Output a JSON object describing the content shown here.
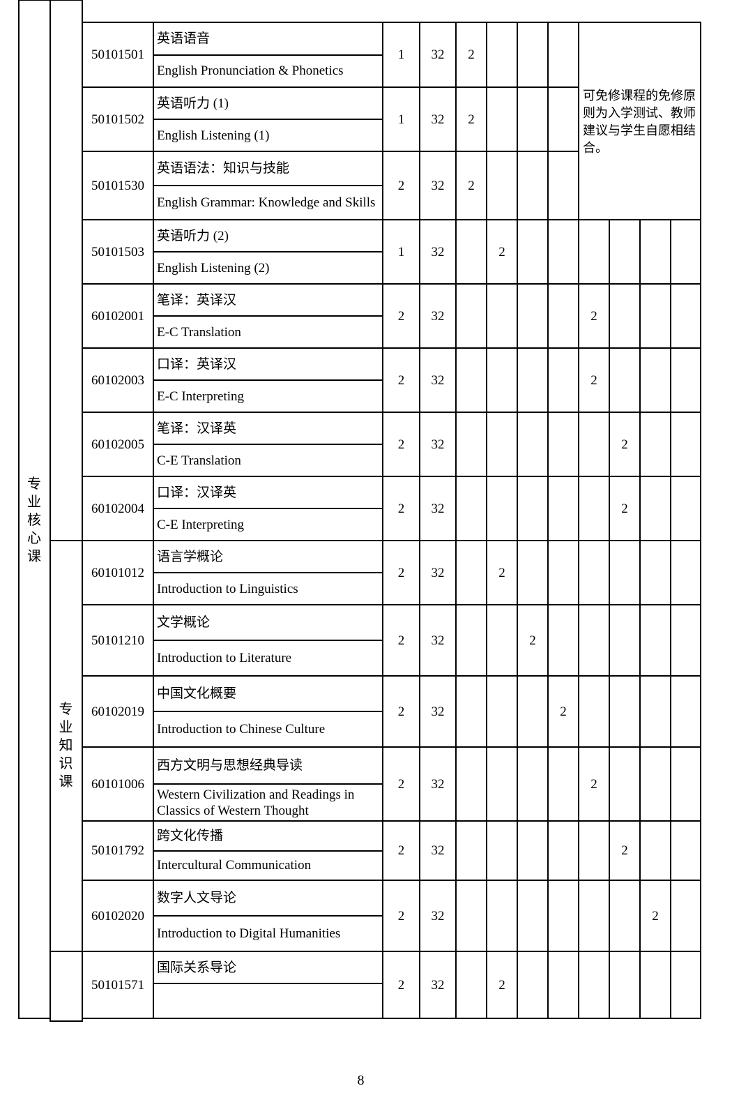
{
  "categories": {
    "outer": "专业核心课",
    "knowledge": "专业知识课"
  },
  "note": "可免修课程的免修原则为入学测试、教师建议与学生自愿相结合。",
  "courses": [
    {
      "code": "50101501",
      "zh": "英语语音",
      "en": "English Pronunciation & Phonetics",
      "credits": "1",
      "hours": "32",
      "semester_col": 0,
      "value": "2"
    },
    {
      "code": "50101502",
      "zh": "英语听力 (1)",
      "en": "English Listening (1)",
      "credits": "1",
      "hours": "32",
      "semester_col": 0,
      "value": "2"
    },
    {
      "code": "50101530",
      "zh": "英语语法：知识与技能",
      "en": "English Grammar: Knowledge and Skills",
      "credits": "2",
      "hours": "32",
      "semester_col": 0,
      "value": "2"
    },
    {
      "code": "50101503",
      "zh": "英语听力 (2)",
      "en": "English Listening (2)",
      "credits": "1",
      "hours": "32",
      "semester_col": 1,
      "value": "2"
    },
    {
      "code": "60102001",
      "zh": "笔译：英译汉",
      "en": "E-C Translation",
      "credits": "2",
      "hours": "32",
      "semester_col": 4,
      "value": "2"
    },
    {
      "code": "60102003",
      "zh": "口译：英译汉",
      "en": "E-C Interpreting",
      "credits": "2",
      "hours": "32",
      "semester_col": 4,
      "value": "2"
    },
    {
      "code": "60102005",
      "zh": "笔译：汉译英",
      "en": "C-E Translation",
      "credits": "2",
      "hours": "32",
      "semester_col": 5,
      "value": "2"
    },
    {
      "code": "60102004",
      "zh": "口译：汉译英",
      "en": "C-E Interpreting",
      "credits": "2",
      "hours": "32",
      "semester_col": 5,
      "value": "2"
    },
    {
      "code": "60101012",
      "zh": "语言学概论",
      "en": "Introduction to Linguistics",
      "credits": "2",
      "hours": "32",
      "semester_col": 1,
      "value": "2"
    },
    {
      "code": "50101210",
      "zh": "文学概论",
      "en": "Introduction to Literature",
      "credits": "2",
      "hours": "32",
      "semester_col": 2,
      "value": "2"
    },
    {
      "code": "60102019",
      "zh": "中国文化概要",
      "en": "Introduction to Chinese Culture",
      "credits": "2",
      "hours": "32",
      "semester_col": 3,
      "value": "2"
    },
    {
      "code": "60101006",
      "zh": "西方文明与思想经典导读",
      "en": "Western Civilization and Readings in Classics of Western Thought",
      "credits": "2",
      "hours": "32",
      "semester_col": 4,
      "value": "2"
    },
    {
      "code": "50101792",
      "zh": "跨文化传播",
      "en": "Intercultural Communication",
      "credits": "2",
      "hours": "32",
      "semester_col": 5,
      "value": "2"
    },
    {
      "code": "60102020",
      "zh": "数字人文导论",
      "en": "Introduction to Digital Humanities",
      "credits": "2",
      "hours": "32",
      "semester_col": 6,
      "value": "2"
    },
    {
      "code": "50101571",
      "zh": "国际关系导论",
      "en": "",
      "credits": "2",
      "hours": "32",
      "semester_col": 1,
      "value": "2"
    }
  ],
  "page_number": "8"
}
